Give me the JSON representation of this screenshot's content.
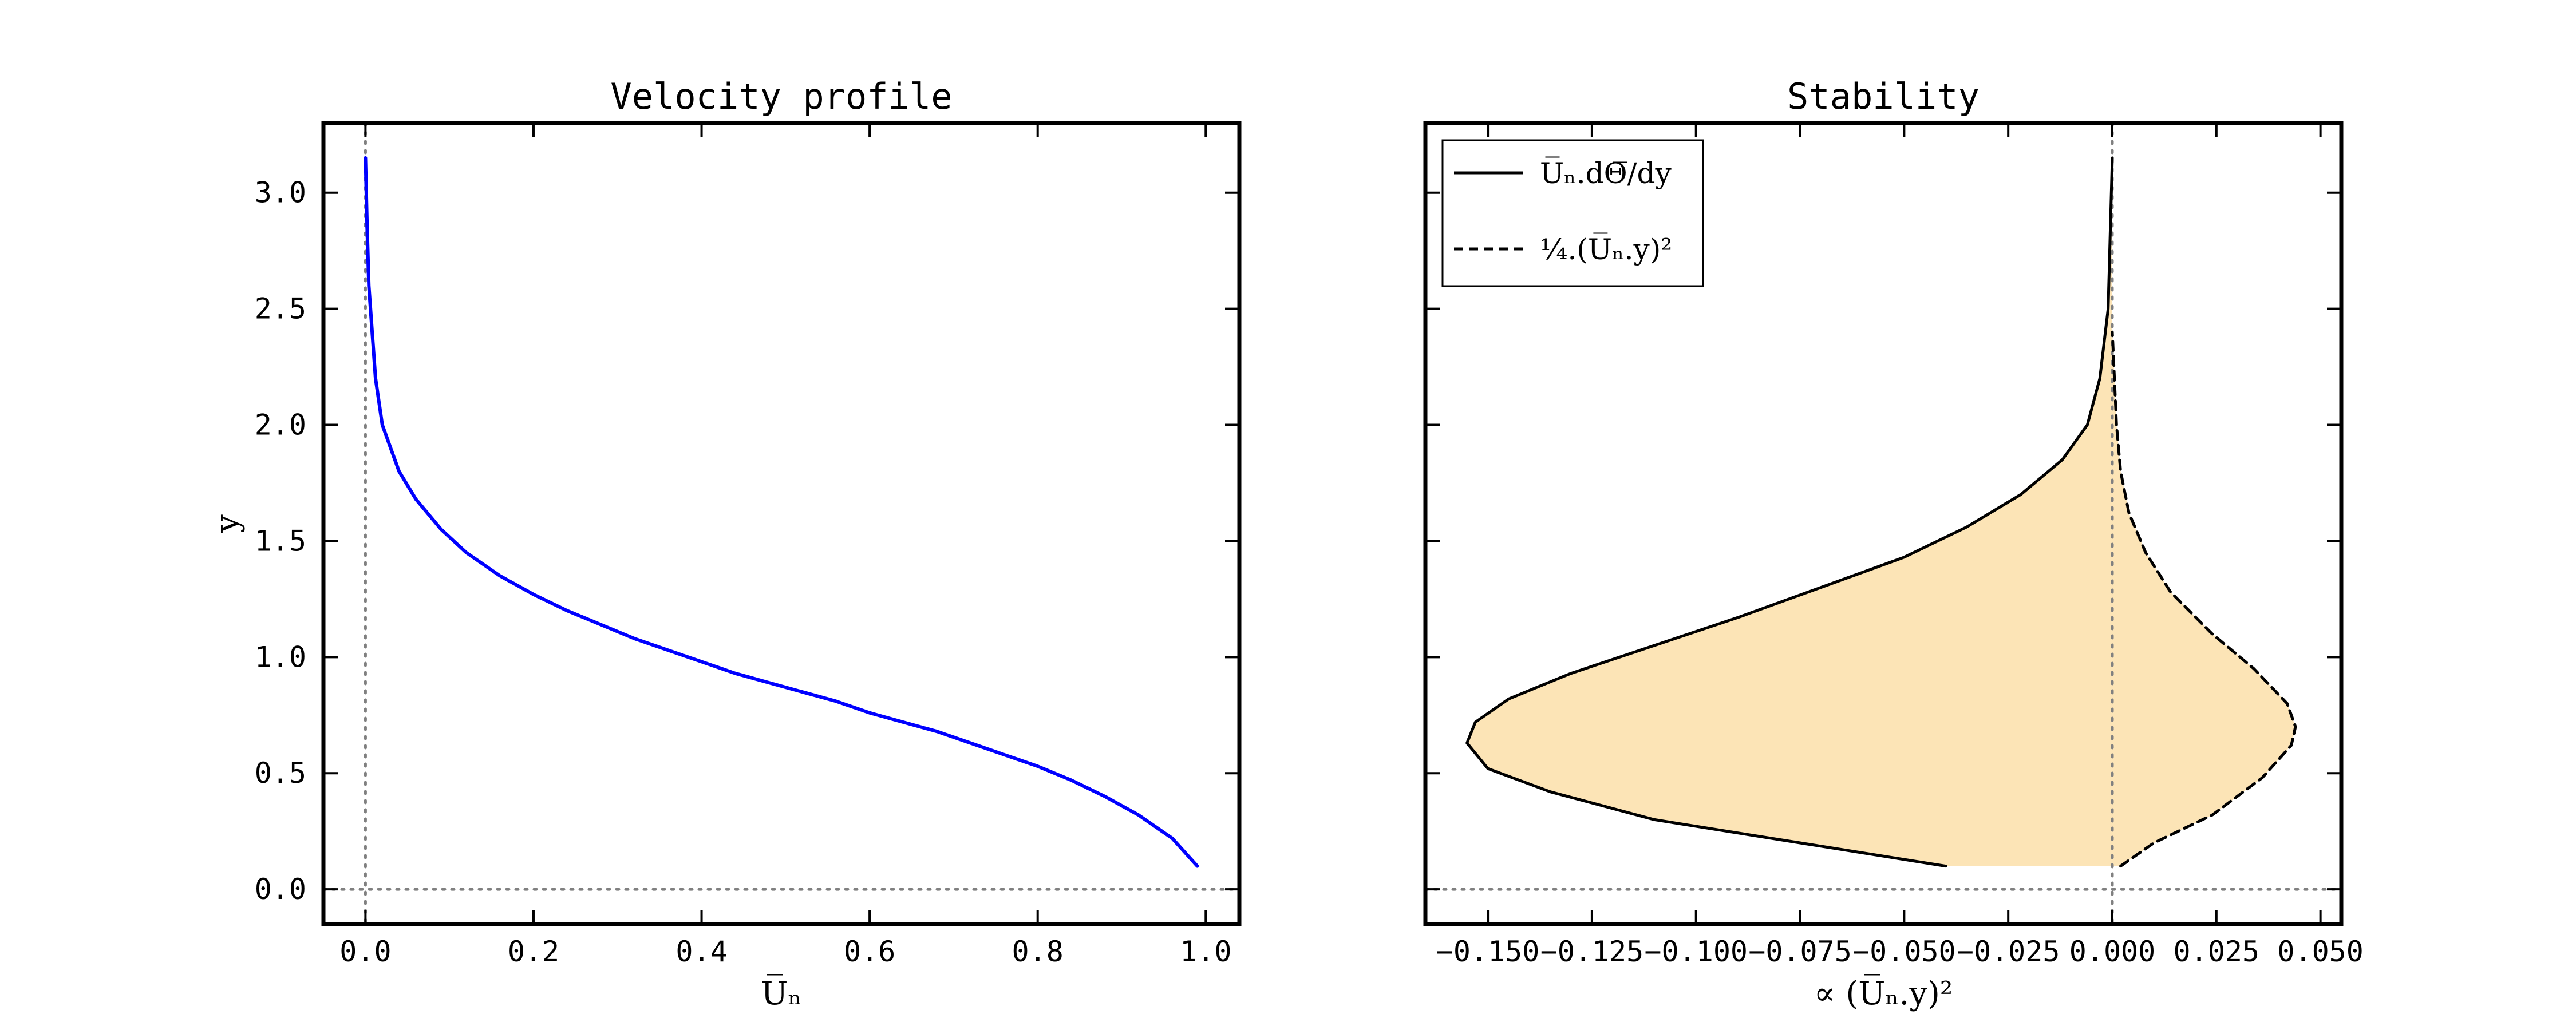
{
  "chart_data": [
    {
      "type": "line",
      "title": "Velocity profile",
      "xlabel": "U̅ₙ",
      "ylabel": "y",
      "xlim": [
        -0.05,
        1.04
      ],
      "ylim": [
        -0.15,
        3.3
      ],
      "xticks": [
        "0.0",
        "0.2",
        "0.4",
        "0.6",
        "0.8",
        "1.0"
      ],
      "yticks": [
        "0.0",
        "0.5",
        "1.0",
        "1.5",
        "2.0",
        "2.5",
        "3.0"
      ],
      "reference_lines": {
        "x": 0.0,
        "y": 0.0,
        "style": "dotted"
      },
      "series": [
        {
          "color": "#0000ff",
          "x": [
            0.99,
            0.96,
            0.92,
            0.88,
            0.84,
            0.8,
            0.76,
            0.72,
            0.68,
            0.64,
            0.6,
            0.56,
            0.52,
            0.48,
            0.44,
            0.4,
            0.36,
            0.32,
            0.28,
            0.24,
            0.2,
            0.16,
            0.12,
            0.09,
            0.06,
            0.04,
            0.03,
            0.02,
            0.012,
            0.008,
            0.004,
            0.002,
            0.0
          ],
          "y": [
            0.1,
            0.22,
            0.32,
            0.4,
            0.47,
            0.53,
            0.58,
            0.63,
            0.68,
            0.72,
            0.76,
            0.81,
            0.85,
            0.89,
            0.93,
            0.98,
            1.03,
            1.08,
            1.14,
            1.2,
            1.27,
            1.35,
            1.45,
            1.55,
            1.68,
            1.8,
            1.9,
            2.0,
            2.2,
            2.4,
            2.6,
            2.85,
            3.15
          ]
        }
      ]
    },
    {
      "type": "line",
      "title": "Stability",
      "xlabel": "∝ (U̅ₙ.y)²",
      "ylabel": "",
      "xlim": [
        -0.165,
        0.055
      ],
      "ylim": [
        -0.15,
        3.3
      ],
      "xticks": [
        "−0.150",
        "−0.125",
        "−0.100",
        "−0.075",
        "−0.050",
        "−0.025",
        "0.000",
        "0.025",
        "0.050"
      ],
      "reference_lines": {
        "x": 0.0,
        "y": 0.0,
        "style": "dotted"
      },
      "fill": {
        "between": "series",
        "color": "#fce4b6"
      },
      "legend": {
        "position": "top-left",
        "entries": [
          "U̅ₙ.dΘ̅/dy",
          "¼.(U̅ₙ.y)²"
        ]
      },
      "series": [
        {
          "name": "U̅ₙ.dΘ̅/dy",
          "style": "solid",
          "color": "#000000",
          "x": [
            -0.04,
            -0.075,
            -0.11,
            -0.135,
            -0.15,
            -0.155,
            -0.153,
            -0.145,
            -0.13,
            -0.11,
            -0.09,
            -0.07,
            -0.05,
            -0.035,
            -0.022,
            -0.012,
            -0.006,
            -0.003,
            -0.001,
            0.0
          ],
          "y": [
            0.1,
            0.2,
            0.3,
            0.42,
            0.52,
            0.63,
            0.72,
            0.82,
            0.93,
            1.05,
            1.17,
            1.3,
            1.43,
            1.56,
            1.7,
            1.85,
            2.0,
            2.2,
            2.5,
            3.15
          ]
        },
        {
          "name": "¼.(U̅ₙ.y)²",
          "style": "dashed",
          "color": "#000000",
          "x": [
            0.002,
            0.01,
            0.024,
            0.036,
            0.043,
            0.044,
            0.042,
            0.034,
            0.024,
            0.014,
            0.008,
            0.004,
            0.002,
            0.001,
            0.0
          ],
          "y": [
            0.1,
            0.2,
            0.32,
            0.48,
            0.62,
            0.7,
            0.8,
            0.95,
            1.1,
            1.28,
            1.45,
            1.62,
            1.8,
            2.0,
            2.4
          ]
        }
      ]
    }
  ]
}
